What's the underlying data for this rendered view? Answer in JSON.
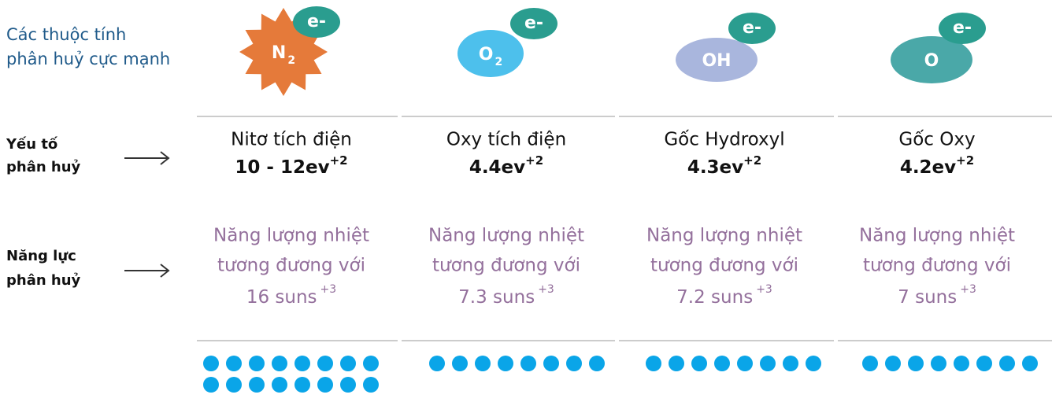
{
  "header": {
    "lines": [
      "Các thuộc tính",
      "phân huỷ cực mạnh"
    ]
  },
  "rows": [
    {
      "lines": [
        "Yếu tố",
        "phân huỷ"
      ]
    },
    {
      "lines": [
        "Năng lực",
        "phân huỷ"
      ]
    }
  ],
  "columns": [
    {
      "symbol": "N",
      "symbol_sub": "2",
      "badge": "e-",
      "name": "Nitơ  tích điện",
      "value": "10 - 12ev",
      "value_sup": "+2",
      "desc_lines": [
        "Năng lượng nhiệt",
        "tương đương với"
      ],
      "suns": "16 suns",
      "suns_sup": "+3"
    },
    {
      "symbol": "O",
      "symbol_sub": "2",
      "badge": "e-",
      "name": "Oxy tích điện",
      "value": "4.4ev",
      "value_sup": "+2",
      "desc_lines": [
        "Năng lượng nhiệt",
        "tương đương với"
      ],
      "suns": "7.3 suns",
      "suns_sup": "+3"
    },
    {
      "symbol": "OH",
      "badge": "e-",
      "name": "Gốc Hydroxyl",
      "value": "4.3ev",
      "value_sup": "+2",
      "desc_lines": [
        "Năng lượng nhiệt",
        "tương đương với"
      ],
      "suns": "7.2 suns",
      "suns_sup": "+3"
    },
    {
      "symbol": "O",
      "badge": "e-",
      "name": "Gốc Oxy",
      "value": "4.2ev",
      "value_sup": "+2",
      "desc_lines": [
        "Năng lượng nhiệt",
        "tương đương với"
      ],
      "suns": "7 suns",
      "suns_sup": "+3"
    }
  ]
}
